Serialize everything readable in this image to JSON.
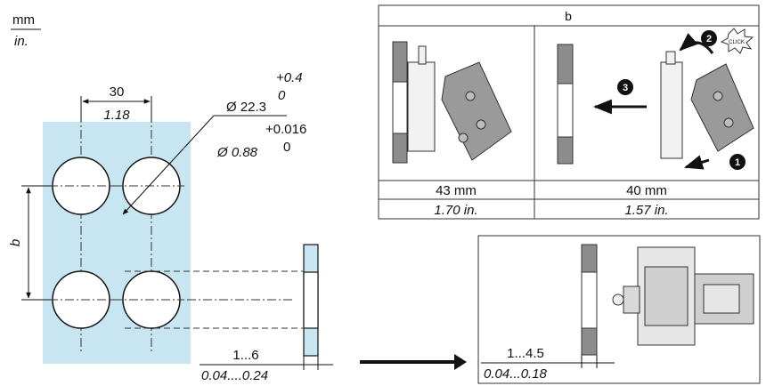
{
  "units": {
    "metric": "mm",
    "imperial": "in."
  },
  "panel_cutout": {
    "hole_spacing_mm": "30",
    "hole_spacing_in": "1.18",
    "diameter_mm": "Ø 22.3",
    "diameter_tol_mm_upper": "+0.4",
    "diameter_tol_mm_lower": "0",
    "diameter_in": "Ø 0.88",
    "diameter_tol_in_upper": "+0.016",
    "diameter_tol_in_lower": "0",
    "vertical_spacing_label": "b"
  },
  "panel_thickness": {
    "range_mm": "1...6",
    "range_in": "0.04....0.24"
  },
  "mount_thickness": {
    "range_mm": "1...4.5",
    "range_in": "0.04...0.18"
  },
  "spacing_table": {
    "header": "b",
    "columns": [
      {
        "mm": "43 mm",
        "in": "1.70 in."
      },
      {
        "mm": "40 mm",
        "in": "1.57 in."
      }
    ],
    "step_numbers": [
      "1",
      "2",
      "3"
    ],
    "click_label": "CLICK"
  },
  "colors": {
    "panel_fill": "#c8e6f2",
    "line": "#111111",
    "device_grey": "#8c8c8c"
  }
}
